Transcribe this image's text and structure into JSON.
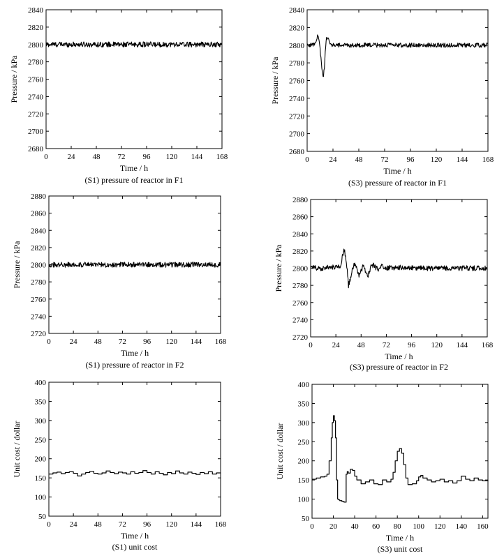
{
  "chart_data": [
    {
      "type": "line",
      "caption": "(S1) pressure of reactor in F1",
      "xlabel": "Time / h",
      "ylabel": "Pressure / kPa",
      "xlim": [
        0,
        168
      ],
      "ylim": [
        2680,
        2840
      ],
      "xticks": [
        0,
        24,
        48,
        72,
        96,
        120,
        144,
        168
      ],
      "yticks": [
        2680,
        2700,
        2720,
        2740,
        2760,
        2780,
        2800,
        2820,
        2840
      ],
      "series": [
        {
          "line_style": "noisy",
          "x": [
            0,
            168
          ],
          "y": [
            2800,
            2800
          ],
          "noise_amplitude": 3
        }
      ]
    },
    {
      "type": "line",
      "caption": "(S3) pressure of reactor in F1",
      "xlabel": "Time / h",
      "ylabel": "Pressure / kPa",
      "xlim": [
        0,
        168
      ],
      "ylim": [
        2680,
        2840
      ],
      "xticks": [
        0,
        24,
        48,
        72,
        96,
        120,
        144,
        168
      ],
      "yticks": [
        2680,
        2700,
        2720,
        2740,
        2760,
        2780,
        2800,
        2820,
        2840
      ],
      "series": [
        {
          "line_style": "noisy",
          "x": [
            0,
            7,
            9,
            10,
            11,
            12,
            13,
            14,
            15,
            16,
            17,
            18,
            19,
            21,
            24,
            168
          ],
          "y": [
            2800,
            2801,
            2806,
            2812,
            2806,
            2795,
            2782,
            2770,
            2763,
            2775,
            2797,
            2808,
            2810,
            2801,
            2800,
            2800
          ],
          "noise_amplitude": 2.5
        }
      ]
    },
    {
      "type": "line",
      "caption": "(S1) pressure of reactor in F2",
      "xlabel": "Time / h",
      "ylabel": "Pressure / kPa",
      "xlim": [
        0,
        168
      ],
      "ylim": [
        2720,
        2880
      ],
      "xticks": [
        0,
        24,
        48,
        72,
        96,
        120,
        144,
        168
      ],
      "yticks": [
        2720,
        2740,
        2760,
        2780,
        2800,
        2820,
        2840,
        2860,
        2880
      ],
      "series": [
        {
          "line_style": "noisy",
          "x": [
            0,
            168
          ],
          "y": [
            2800,
            2800
          ],
          "noise_amplitude": 3
        }
      ]
    },
    {
      "type": "line",
      "caption": "(S3) pressure of reactor in F2",
      "xlabel": "Time / h",
      "ylabel": "Pressure / kPa",
      "xlim": [
        0,
        168
      ],
      "ylim": [
        2720,
        2880
      ],
      "xticks": [
        0,
        24,
        48,
        72,
        96,
        120,
        144,
        168
      ],
      "yticks": [
        2720,
        2740,
        2760,
        2780,
        2800,
        2820,
        2840,
        2860,
        2880
      ],
      "series": [
        {
          "line_style": "noisy",
          "x": [
            0,
            10,
            20,
            28,
            30,
            32,
            34,
            36,
            38,
            40,
            42,
            44,
            46,
            48,
            50,
            52,
            54,
            56,
            58,
            60,
            64,
            68,
            72,
            76,
            80,
            88,
            96,
            110,
            130,
            168
          ],
          "y": [
            2801,
            2800,
            2801,
            2802,
            2812,
            2822,
            2808,
            2780,
            2788,
            2800,
            2806,
            2798,
            2792,
            2797,
            2802,
            2797,
            2790,
            2796,
            2804,
            2803,
            2798,
            2803,
            2799,
            2802,
            2800,
            2801,
            2800,
            2800,
            2800,
            2800
          ],
          "noise_amplitude": 3
        }
      ]
    },
    {
      "type": "line",
      "caption": "(S1) unit cost",
      "xlabel": "Time / h",
      "ylabel": "Unit cost / dollar",
      "xlim": [
        0,
        168
      ],
      "ylim": [
        50,
        400
      ],
      "xticks": [
        0,
        24,
        48,
        72,
        96,
        120,
        144,
        168
      ],
      "yticks": [
        50,
        100,
        150,
        200,
        250,
        300,
        350,
        400
      ],
      "series": [
        {
          "line_style": "step",
          "x": [
            0,
            4,
            8,
            12,
            16,
            20,
            24,
            28,
            32,
            36,
            40,
            44,
            48,
            52,
            56,
            60,
            64,
            68,
            72,
            76,
            80,
            84,
            88,
            92,
            96,
            100,
            104,
            108,
            112,
            116,
            120,
            124,
            128,
            132,
            136,
            140,
            144,
            148,
            152,
            156,
            160,
            164,
            168
          ],
          "y": [
            160,
            163,
            165,
            161,
            164,
            166,
            162,
            155,
            160,
            164,
            167,
            162,
            160,
            163,
            168,
            164,
            161,
            165,
            163,
            160,
            166,
            162,
            164,
            169,
            164,
            160,
            166,
            162,
            158,
            164,
            161,
            168,
            163,
            160,
            165,
            162,
            159,
            164,
            161,
            166,
            160,
            163,
            163
          ]
        }
      ]
    },
    {
      "type": "line",
      "caption": "(S3) unit cost",
      "xlabel": "Time / h",
      "ylabel": "Unit cost / dollar",
      "xlim": [
        0,
        165
      ],
      "ylim": [
        50,
        400
      ],
      "xticks": [
        0,
        20,
        40,
        60,
        80,
        100,
        120,
        140,
        160
      ],
      "yticks": [
        50,
        100,
        150,
        200,
        250,
        300,
        350,
        400
      ],
      "series": [
        {
          "line_style": "step",
          "x": [
            0,
            4,
            8,
            12,
            14,
            16,
            18,
            19,
            20,
            21,
            22,
            23,
            24,
            25,
            26,
            28,
            30,
            32,
            33,
            34,
            36,
            38,
            40,
            42,
            46,
            50,
            54,
            58,
            62,
            66,
            70,
            74,
            76,
            78,
            80,
            82,
            84,
            86,
            88,
            90,
            94,
            98,
            100,
            102,
            104,
            108,
            112,
            116,
            120,
            124,
            128,
            132,
            136,
            140,
            144,
            148,
            152,
            156,
            160,
            165
          ],
          "y": [
            152,
            155,
            158,
            160,
            165,
            200,
            260,
            300,
            318,
            305,
            260,
            150,
            100,
            98,
            96,
            94,
            92,
            165,
            172,
            168,
            178,
            175,
            160,
            150,
            140,
            145,
            150,
            140,
            138,
            150,
            145,
            152,
            170,
            200,
            225,
            232,
            220,
            190,
            155,
            138,
            140,
            148,
            158,
            162,
            155,
            150,
            145,
            148,
            152,
            145,
            148,
            142,
            148,
            160,
            152,
            148,
            155,
            150,
            148,
            150
          ]
        }
      ]
    }
  ]
}
